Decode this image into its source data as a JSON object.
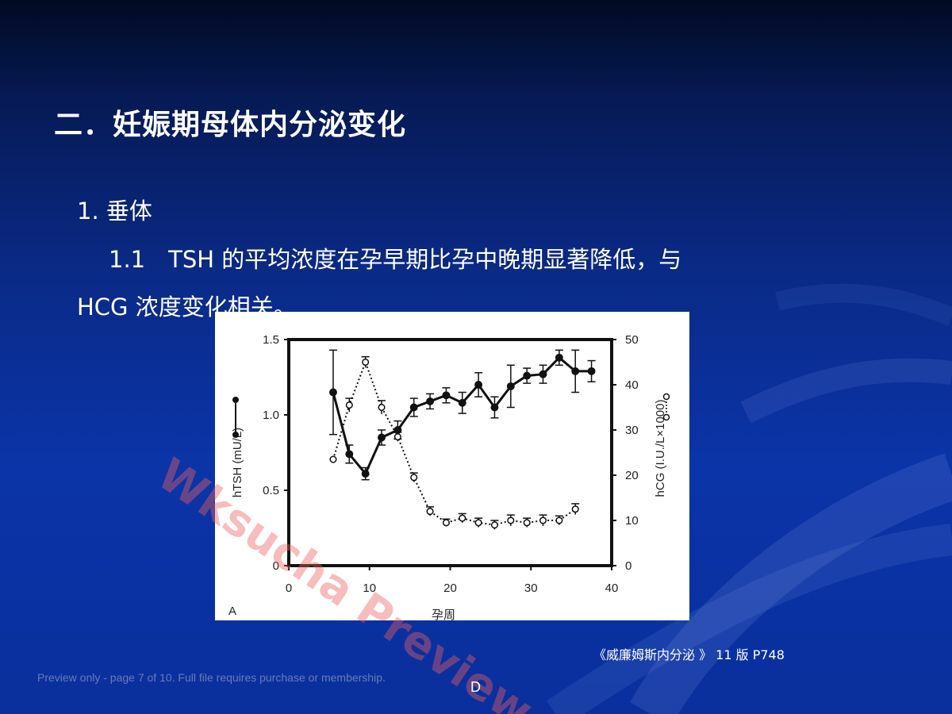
{
  "slide": {
    "title": "二．妊娠期母体内分泌变化",
    "section": "1. 垂体",
    "subsection_text": "1.1　TSH 的平均浓度在孕早期比孕中晚期显著降低，与",
    "subsection_cont": "HCG 浓度变化相关。",
    "citation": "《威廉姆斯内分泌 》 11 版  P748",
    "preview_note": "Preview only - page 7 of 10. Full file requires purchase or membership.",
    "page_mark": "D",
    "watermark": "Wksucha Preview"
  },
  "colors": {
    "background": "#0a2f9d",
    "text": "#ffffff",
    "watermark": "#eb5f5f"
  },
  "chart_data": {
    "type": "line",
    "panel_label": "A",
    "xlabel": "孕周",
    "ylabel_left": "hTSH (mU/L)",
    "ylabel_right": "hCG (I.U./L×1000)",
    "xlim": [
      0,
      40
    ],
    "ylim_left": [
      0,
      1.5
    ],
    "ylim_right": [
      0,
      50
    ],
    "x_ticks": [
      0,
      10,
      20,
      30,
      40
    ],
    "y_left_ticks": [
      0,
      0.5,
      1.0,
      1.5
    ],
    "y_left_tick_labels": [
      "0",
      "0.5",
      "1.0",
      "1.5"
    ],
    "y_right_ticks": [
      0,
      10,
      20,
      30,
      40,
      50
    ],
    "series": [
      {
        "name": "hTSH",
        "axis": "left",
        "style": "solid-filled",
        "x": [
          5.5,
          7.5,
          9.5,
          11.5,
          13.5,
          15.5,
          17.5,
          19.5,
          21.5,
          23.5,
          25.5,
          27.5,
          29.5,
          31.5,
          33.5,
          35.5,
          37.5
        ],
        "y": [
          1.15,
          0.74,
          0.61,
          0.85,
          0.9,
          1.05,
          1.09,
          1.13,
          1.08,
          1.2,
          1.05,
          1.19,
          1.26,
          1.27,
          1.38,
          1.29,
          1.29
        ],
        "err": [
          0.28,
          0.06,
          0.04,
          0.05,
          0.06,
          0.06,
          0.05,
          0.05,
          0.07,
          0.08,
          0.07,
          0.14,
          0.05,
          0.06,
          0.05,
          0.14,
          0.07
        ]
      },
      {
        "name": "hCG",
        "axis": "right",
        "style": "dotted-open",
        "x": [
          5.5,
          7.5,
          9.5,
          11.5,
          13.5,
          15.5,
          17.5,
          19.5,
          21.5,
          23.5,
          25.5,
          27.5,
          29.5,
          31.5,
          33.5,
          35.5
        ],
        "y": [
          23.5,
          35.5,
          45.0,
          35.0,
          28.5,
          19.5,
          12.0,
          9.5,
          10.5,
          9.5,
          9.0,
          10.0,
          9.5,
          10.0,
          10.0,
          12.5
        ],
        "err": [
          0,
          1.5,
          1.2,
          1.5,
          1.0,
          1.0,
          1.0,
          0.8,
          1.0,
          1.0,
          1.0,
          1.2,
          1.0,
          1.2,
          1.0,
          1.2
        ]
      }
    ]
  }
}
